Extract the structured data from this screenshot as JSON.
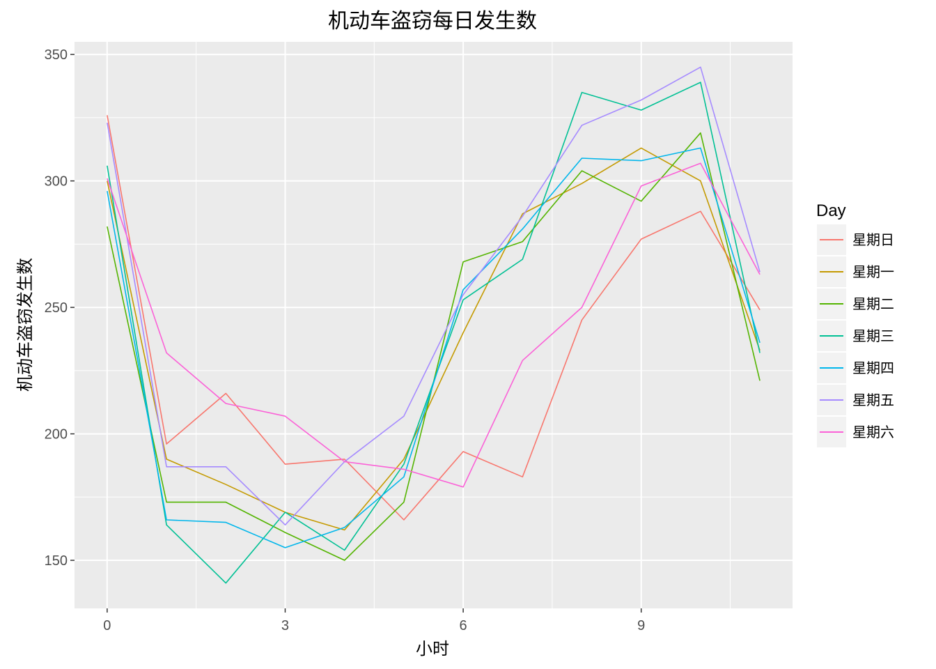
{
  "chart_data": {
    "type": "line",
    "title": "机动车盗窃每日发生数",
    "xlabel": "小时",
    "ylabel": "机动车盗窃发生数",
    "xlim": [
      -0.55,
      11.55
    ],
    "ylim": [
      131,
      355
    ],
    "x_ticks": [
      0,
      3,
      6,
      9
    ],
    "x_minor": [
      1.5,
      4.5,
      7.5,
      10.5
    ],
    "y_ticks": [
      150,
      200,
      250,
      300,
      350
    ],
    "y_minor": [
      175,
      225,
      275,
      325
    ],
    "grid": true,
    "legend": {
      "title": "Day",
      "position": "right"
    },
    "x": [
      0,
      1,
      2,
      3,
      4,
      5,
      6,
      7,
      8,
      9,
      10,
      11
    ],
    "series": [
      {
        "name": "星期日",
        "color": "#F8766D",
        "values": [
          326,
          196,
          216,
          188,
          190,
          166,
          193,
          183,
          245,
          277,
          288,
          249
        ]
      },
      {
        "name": "星期一",
        "color": "#C49A00",
        "values": [
          300,
          190,
          180,
          169,
          162,
          190,
          240,
          287,
          299,
          313,
          300,
          233
        ]
      },
      {
        "name": "星期二",
        "color": "#53B400",
        "values": [
          282,
          173,
          173,
          161,
          150,
          173,
          268,
          276,
          304,
          292,
          319,
          221
        ]
      },
      {
        "name": "星期三",
        "color": "#00C094",
        "values": [
          306,
          164,
          141,
          169,
          154,
          188,
          253,
          269,
          335,
          328,
          339,
          232
        ]
      },
      {
        "name": "星期四",
        "color": "#00B6EB",
        "values": [
          296,
          166,
          165,
          155,
          163,
          183,
          257,
          281,
          309,
          308,
          313,
          236
        ]
      },
      {
        "name": "星期五",
        "color": "#A58AFF",
        "values": [
          323,
          187,
          187,
          164,
          189,
          207,
          255,
          286,
          322,
          332,
          345,
          264
        ]
      },
      {
        "name": "星期六",
        "color": "#FB61D7",
        "values": [
          301,
          232,
          212,
          207,
          189,
          186,
          179,
          229,
          250,
          298,
          307,
          263
        ]
      }
    ]
  }
}
